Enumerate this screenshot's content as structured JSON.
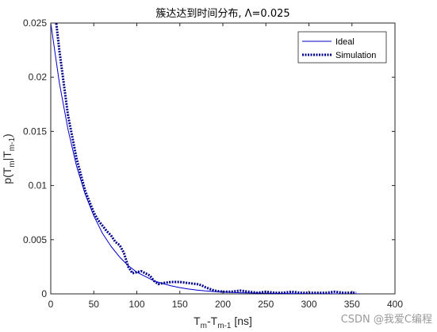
{
  "chart_data": {
    "type": "line",
    "title": "簇达达到时间分布, Λ=0.025",
    "xlabel": "T",
    "xlabel_parts": [
      "T",
      "m",
      "-T",
      "m-1",
      " [ns]"
    ],
    "ylabel_parts": [
      "p(T",
      "m",
      "|T",
      "m-1",
      ")"
    ],
    "xlim": [
      0,
      400
    ],
    "ylim": [
      0,
      0.025
    ],
    "xticks": [
      0,
      50,
      100,
      150,
      200,
      250,
      300,
      350,
      400
    ],
    "yticks": [
      0,
      0.005,
      0.01,
      0.015,
      0.02,
      0.025
    ],
    "ytick_labels": [
      "0",
      "0.005",
      "0.01",
      "0.015",
      "0.02",
      "0.025"
    ],
    "grid": false,
    "legend_position": "top-right",
    "series": [
      {
        "name": "Ideal",
        "style": "solid",
        "color": "#0000cc",
        "x": [
          0,
          10,
          20,
          30,
          40,
          50,
          60,
          70,
          80,
          90,
          100,
          110,
          120,
          130,
          140,
          150,
          160,
          170,
          180,
          190,
          200,
          220,
          250,
          300,
          350,
          360
        ],
        "y": [
          0.025,
          0.0195,
          0.0152,
          0.0118,
          0.0092,
          0.0072,
          0.0056,
          0.0044,
          0.0034,
          0.0026,
          0.002,
          0.0016,
          0.0012,
          0.00095,
          0.00074,
          0.00058,
          0.00045,
          0.00035,
          0.00027,
          0.00021,
          0.00017,
          0.0001,
          5e-05,
          1e-05,
          0.0,
          0.0
        ]
      },
      {
        "name": "Simulation",
        "style": "dotted",
        "color": "#00008b",
        "x": [
          5,
          10,
          20,
          30,
          40,
          50,
          55,
          60,
          65,
          70,
          75,
          80,
          85,
          90,
          95,
          100,
          105,
          110,
          115,
          120,
          125,
          130,
          140,
          150,
          160,
          170,
          175,
          180,
          190,
          200,
          210,
          220,
          230,
          240,
          250,
          260,
          270,
          280,
          290,
          300,
          310,
          320,
          330,
          340,
          350,
          355
        ],
        "y": [
          0.026,
          0.0225,
          0.0165,
          0.0125,
          0.0095,
          0.0075,
          0.0068,
          0.0063,
          0.0058,
          0.0054,
          0.0048,
          0.0045,
          0.0038,
          0.0025,
          0.0019,
          0.002,
          0.0021,
          0.0019,
          0.0017,
          0.0012,
          0.0009,
          0.001,
          0.0011,
          0.0011,
          0.001,
          0.0009,
          0.0008,
          0.0006,
          0.0003,
          0.0002,
          0.0002,
          0.0003,
          0.0002,
          0.0001,
          0.0002,
          0.0001,
          0.0001,
          0.0002,
          0.0001,
          0.0001,
          0.0001,
          0.0001,
          0.0002,
          0.0001,
          0.0001,
          0.0001
        ]
      }
    ]
  },
  "watermark": "CSDN @我爱C编程"
}
